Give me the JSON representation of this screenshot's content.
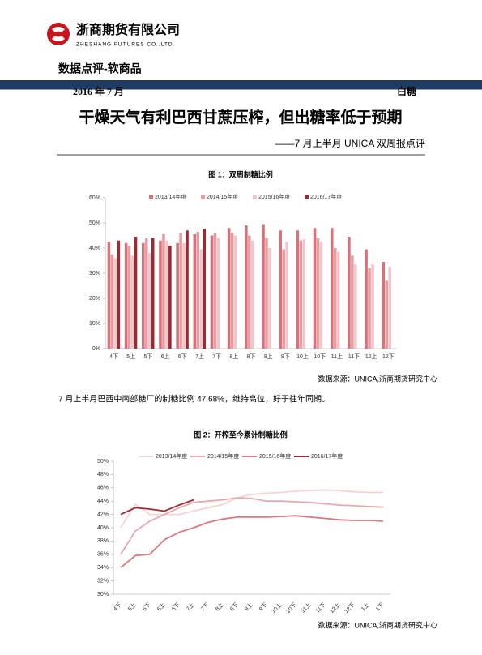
{
  "header": {
    "company": "浙商期货有限公司",
    "company_en": "ZHESHANG FUTURES CO.,LTD.",
    "section": "数据点评-软商品",
    "date": "2016 年 7 月",
    "commodity": "白糖",
    "title": "干燥天气有利巴西甘蔗压榨，但出糖率低于预期",
    "subtitle": "——7 月上半月 UNICA 双周报点评"
  },
  "paragraph": "7 月上半月巴西中南部糖厂的制糖比例 47.68%，维持高位，好于往年同期。",
  "chart_data": [
    {
      "type": "bar",
      "title": "图 1：双周制糖比例",
      "source": "数据来源：UNICA,浙商期货研究中心",
      "categories": [
        "4下",
        "5上",
        "5下",
        "6上",
        "6下",
        "7上",
        "7下",
        "8上",
        "8下",
        "9上",
        "9下",
        "10上",
        "10下",
        "11上",
        "11下",
        "12上",
        "12下"
      ],
      "ylim": [
        0,
        60
      ],
      "yticks": [
        {
          "value": 0,
          "label": "0%"
        },
        {
          "value": 10,
          "label": "10%"
        },
        {
          "value": 20,
          "label": "20%"
        },
        {
          "value": 30,
          "label": "30%"
        },
        {
          "value": 40,
          "label": "40%"
        },
        {
          "value": 50,
          "label": "50%"
        },
        {
          "value": 60,
          "label": "60%"
        }
      ],
      "grid": false,
      "legend": "top",
      "series": [
        {
          "name": "2013/14年度",
          "color": "#d6727a",
          "values": [
            42.5,
            42,
            42,
            43,
            42,
            45.5,
            45,
            48,
            49,
            49.5,
            47,
            47,
            48,
            48,
            44.5,
            39.5,
            34.5
          ]
        },
        {
          "name": "2014/15年度",
          "color": "#e39ea3",
          "values": [
            37.5,
            41,
            44,
            45.5,
            46,
            46.5,
            46,
            46,
            45,
            44,
            39.5,
            43,
            44,
            40,
            37,
            32,
            27
          ]
        },
        {
          "name": "2015/16年度",
          "color": "#f0c6c9",
          "values": [
            36,
            37,
            38,
            43,
            42,
            39.5,
            44,
            45,
            43,
            40,
            42.5,
            43.5,
            42.5,
            38.5,
            33.5,
            33.5,
            32.5
          ]
        },
        {
          "name": "2016/17年度",
          "color": "#9e2a31",
          "values": [
            43,
            44.5,
            44,
            41,
            47,
            47.7,
            null,
            null,
            null,
            null,
            null,
            null,
            null,
            null,
            null,
            null,
            null
          ]
        }
      ]
    },
    {
      "type": "line",
      "title": "图 2：开榨至今累计制糖比例",
      "source": "数据来源：UNICA,浙商期货研究中心",
      "categories": [
        "4下",
        "5上",
        "5下",
        "6上",
        "6下",
        "7上",
        "7下",
        "8上",
        "8下",
        "9上",
        "9下",
        "10上",
        "10下",
        "11上",
        "11下",
        "12上",
        "12下",
        "1上",
        "1下"
      ],
      "ylim": [
        30,
        50
      ],
      "yticks": [
        {
          "value": 30,
          "label": "30%"
        },
        {
          "value": 32,
          "label": "32%"
        },
        {
          "value": 34,
          "label": "34%"
        },
        {
          "value": 36,
          "label": "36%"
        },
        {
          "value": 38,
          "label": "38%"
        },
        {
          "value": 40,
          "label": "40%"
        },
        {
          "value": 42,
          "label": "42%"
        },
        {
          "value": 44,
          "label": "44%"
        },
        {
          "value": 46,
          "label": "46%"
        },
        {
          "value": 48,
          "label": "48%"
        },
        {
          "value": 50,
          "label": "50%"
        }
      ],
      "grid": false,
      "legend": "top",
      "series": [
        {
          "name": "2013/14年度",
          "color": "#f3d3d5",
          "values": [
            40,
            43.5,
            42,
            42,
            42,
            42.5,
            43,
            43.5,
            44.5,
            45,
            45.2,
            45.3,
            45.5,
            45.6,
            45.7,
            45.6,
            45.4,
            45.3,
            45.3
          ]
        },
        {
          "name": "2014/15年度",
          "color": "#e6a9ad",
          "values": [
            36,
            39.5,
            41,
            42,
            43,
            43.8,
            44,
            44.2,
            44.5,
            44.4,
            44,
            44,
            43.9,
            43.8,
            43.6,
            43.4,
            43.3,
            43.2,
            43.1
          ]
        },
        {
          "name": "2015/16年度",
          "color": "#d67a81",
          "values": [
            34,
            35.8,
            36,
            38.2,
            39.3,
            40,
            40.8,
            41.3,
            41.6,
            41.6,
            41.6,
            41.7,
            41.8,
            41.6,
            41.4,
            41.2,
            41.1,
            41.1,
            41
          ]
        },
        {
          "name": "2016/17年度",
          "color": "#9e2a31",
          "values": [
            42,
            43,
            42.8,
            42.5,
            43.4,
            44.2,
            null,
            null,
            null,
            null,
            null,
            null,
            null,
            null,
            null,
            null,
            null,
            null,
            null
          ]
        }
      ]
    }
  ]
}
